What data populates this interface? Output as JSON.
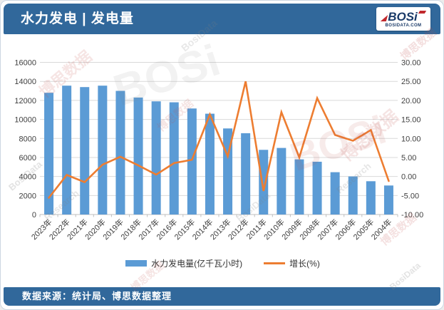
{
  "header": {
    "title": "水力发电 | 发电量",
    "logo": {
      "brand": "BOSi",
      "domain": "BOSIDATA.COM"
    }
  },
  "footer": {
    "source": "数据来源：统计局、博思数据整理"
  },
  "watermarks": [
    "博思数据",
    "BosiData",
    "Research",
    "BOSi"
  ],
  "colors": {
    "header_bg": "#31689B",
    "bar": "#5B9BD5",
    "line": "#ED7D31",
    "grid": "#D9D9D9",
    "axis_line": "#BFBFBF",
    "axis_text": "#404040",
    "logo_red": "#C0282D",
    "logo_navy": "#1A3A68"
  },
  "chart_data": {
    "type": "bar",
    "subtype": "bar+line combo, dual axis",
    "title": "水力发电 | 发电量",
    "categories": [
      "2023年",
      "2022年",
      "2021年",
      "2020年",
      "2019年",
      "2018年",
      "2017年",
      "2016年",
      "2015年",
      "2014年",
      "2013年",
      "2012年",
      "2011年",
      "2010年",
      "2009年",
      "2008年",
      "2007年",
      "2006年",
      "2005年",
      "2004年"
    ],
    "series": [
      {
        "name": "水力发电量(亿千瓦小时)",
        "type": "bar",
        "axis": "left",
        "color": "#5B9BD5",
        "values": [
          12800,
          13550,
          13400,
          13550,
          13000,
          12300,
          11900,
          11800,
          11150,
          10600,
          9050,
          8550,
          6800,
          7000,
          5800,
          5550,
          4450,
          4000,
          3500,
          3050
        ]
      },
      {
        "name": "增长(%)",
        "type": "line",
        "axis": "right",
        "color": "#ED7D31",
        "values": [
          -5.6,
          0.4,
          -1.5,
          3.1,
          5.2,
          2.9,
          0.5,
          3.5,
          4.4,
          16.3,
          5.3,
          25.0,
          -3.8,
          16.9,
          5.0,
          20.6,
          10.9,
          9.4,
          12.2,
          -1.2
        ]
      }
    ],
    "left_axis": {
      "min": 0,
      "max": 16000,
      "step": 2000,
      "ticks": [
        "16000",
        "14000",
        "12000",
        "10000",
        "8000",
        "6000",
        "4000",
        "2000",
        "0"
      ]
    },
    "right_axis": {
      "min": -10,
      "max": 30,
      "step": 5,
      "ticks": [
        "30.00",
        "25.00",
        "20.00",
        "15.00",
        "10.00",
        "5.00",
        "0.00",
        "-5.00",
        "-10.00"
      ]
    },
    "legend_position": "bottom",
    "grid": true,
    "x_label_rotation": -45
  }
}
